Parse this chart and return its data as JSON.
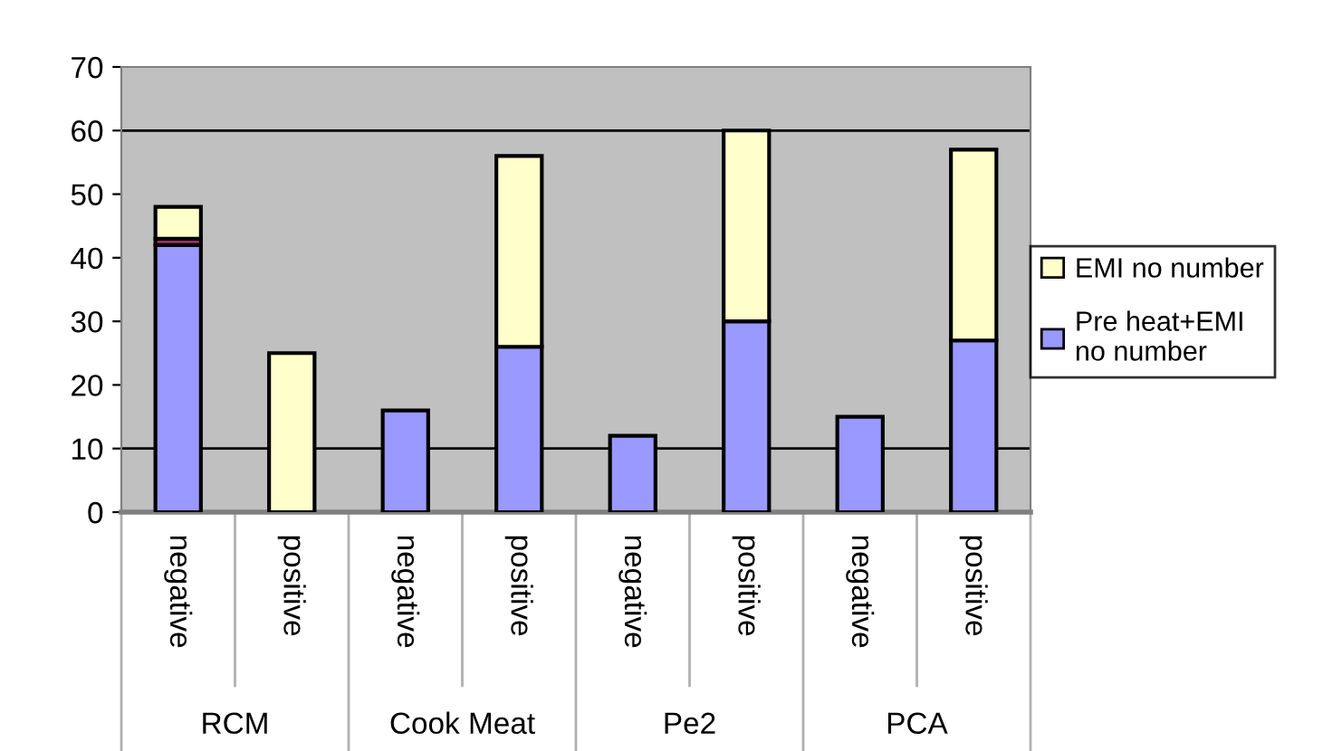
{
  "chart_data": {
    "type": "bar",
    "stacked": true,
    "categories": [
      "negative",
      "positive",
      "negative",
      "positive",
      "negative",
      "positive",
      "negative",
      "positive"
    ],
    "annotations": [
      "RCM",
      "Cook Meat",
      "Pe2",
      "PCA"
    ],
    "series": [
      {
        "name": "Pre heat+EMI no number",
        "color": "#9999ff",
        "values": [
          42,
          0,
          16,
          26,
          12,
          30,
          15,
          27
        ]
      },
      {
        "color": "#993366",
        "values": [
          1,
          0,
          0,
          0,
          0,
          0,
          0,
          0
        ]
      },
      {
        "name": "EMI no number",
        "color": "#ffffcc",
        "values": [
          5,
          25,
          0,
          30,
          0,
          30,
          0,
          30
        ]
      }
    ],
    "ylim": [
      0,
      70
    ],
    "yticks": [
      0,
      10,
      20,
      30,
      40,
      50,
      60,
      70
    ],
    "ref_lines": [
      {
        "axis": "y",
        "value": 10,
        "color": "#000000"
      },
      {
        "axis": "y",
        "value": 60,
        "color": "#000000"
      }
    ],
    "legend": "right"
  }
}
